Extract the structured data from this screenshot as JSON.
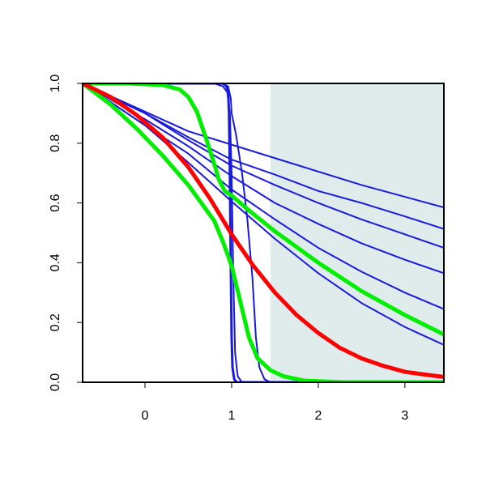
{
  "chart_data": {
    "type": "line",
    "title": "",
    "xlabel": "",
    "ylabel": "",
    "xlim": [
      -0.72,
      3.45
    ],
    "ylim": [
      0,
      1
    ],
    "x_ticks": [
      0,
      1,
      2,
      3
    ],
    "x_tick_labels": [
      "0",
      "1",
      "2",
      "3"
    ],
    "y_ticks": [
      0,
      0.2,
      0.4,
      0.6,
      0.8,
      1
    ],
    "y_tick_labels": [
      "0.0",
      "0.2",
      "0.4",
      "0.6",
      "0.8",
      "1.0"
    ],
    "grid": false,
    "legend": "none",
    "shaded_region": {
      "x_from": 1.45,
      "x_to": 3.45,
      "color": "#e0ecec"
    },
    "series": [
      {
        "color": "#1a1adb",
        "width": 2,
        "points": [
          [
            -0.72,
            1.0
          ],
          [
            0.5,
            0.84
          ],
          [
            1.5,
            0.75
          ],
          [
            2.5,
            0.66
          ],
          [
            3.45,
            0.585
          ]
        ]
      },
      {
        "color": "#1a1adb",
        "width": 2,
        "points": [
          [
            -0.72,
            1.0
          ],
          [
            0.0,
            0.9
          ],
          [
            0.5,
            0.82
          ],
          [
            1.0,
            0.745
          ],
          [
            1.5,
            0.695
          ],
          [
            2.0,
            0.64
          ],
          [
            2.5,
            0.6
          ],
          [
            3.0,
            0.555
          ],
          [
            3.45,
            0.513
          ]
        ]
      },
      {
        "color": "#1a1adb",
        "width": 2,
        "points": [
          [
            -0.72,
            1.0
          ],
          [
            0.0,
            0.9
          ],
          [
            0.5,
            0.81
          ],
          [
            1.0,
            0.725
          ],
          [
            1.5,
            0.66
          ],
          [
            2.0,
            0.6
          ],
          [
            2.5,
            0.545
          ],
          [
            3.0,
            0.495
          ],
          [
            3.45,
            0.45
          ]
        ]
      },
      {
        "color": "#1a1adb",
        "width": 2,
        "points": [
          [
            -0.72,
            1.0
          ],
          [
            0.0,
            0.88
          ],
          [
            0.5,
            0.79
          ],
          [
            1.0,
            0.69
          ],
          [
            1.5,
            0.6
          ],
          [
            2.0,
            0.53
          ],
          [
            2.5,
            0.465
          ],
          [
            3.0,
            0.41
          ],
          [
            3.45,
            0.365
          ]
        ]
      },
      {
        "color": "#1a1adb",
        "width": 2,
        "points": [
          [
            -0.72,
            1.0
          ],
          [
            0.0,
            0.86
          ],
          [
            0.5,
            0.765
          ],
          [
            1.0,
            0.645
          ],
          [
            1.5,
            0.545
          ],
          [
            2.0,
            0.45
          ],
          [
            2.5,
            0.37
          ],
          [
            3.0,
            0.3
          ],
          [
            3.45,
            0.245
          ]
        ]
      },
      {
        "color": "#1a1adb",
        "width": 2,
        "points": [
          [
            -0.72,
            1.0
          ],
          [
            0.0,
            0.86
          ],
          [
            0.5,
            0.735
          ],
          [
            1.0,
            0.605
          ],
          [
            1.5,
            0.48
          ],
          [
            2.0,
            0.365
          ],
          [
            2.5,
            0.265
          ],
          [
            3.0,
            0.185
          ],
          [
            3.45,
            0.125
          ]
        ]
      },
      {
        "color": "#1a1adb",
        "width": 2,
        "points": [
          [
            -0.72,
            1.0
          ],
          [
            0.8,
            1.0
          ],
          [
            0.9,
            0.99
          ],
          [
            0.95,
            0.97
          ],
          [
            0.98,
            0.9
          ],
          [
            1.0,
            0.7
          ],
          [
            1.02,
            0.35
          ],
          [
            1.04,
            0.1
          ],
          [
            1.07,
            0.02
          ],
          [
            1.12,
            0.0
          ],
          [
            3.45,
            0.0
          ]
        ]
      },
      {
        "color": "#1a1adb",
        "width": 2,
        "points": [
          [
            -0.72,
            1.0
          ],
          [
            0.9,
            1.0
          ],
          [
            0.96,
            0.99
          ],
          [
            0.99,
            0.95
          ],
          [
            1.0,
            0.9
          ],
          [
            1.05,
            0.83
          ],
          [
            1.12,
            0.7
          ],
          [
            1.18,
            0.55
          ],
          [
            1.24,
            0.35
          ],
          [
            1.28,
            0.15
          ],
          [
            1.32,
            0.05
          ],
          [
            1.38,
            0.01
          ],
          [
            1.45,
            0.0
          ],
          [
            3.45,
            0.0
          ]
        ]
      },
      {
        "color": "#1a1adb",
        "width": 3,
        "points": [
          [
            -0.72,
            1.0
          ],
          [
            0.9,
            1.0
          ],
          [
            0.94,
            0.99
          ],
          [
            0.96,
            0.97
          ],
          [
            0.97,
            0.9
          ],
          [
            0.98,
            0.7
          ],
          [
            0.99,
            0.4
          ],
          [
            1.0,
            0.15
          ],
          [
            1.01,
            0.05
          ],
          [
            1.03,
            0.01
          ],
          [
            1.06,
            0.0
          ],
          [
            3.45,
            0.0
          ]
        ]
      },
      {
        "color": "#00ee00",
        "width": 5,
        "points": [
          [
            -0.72,
            1.0
          ],
          [
            -0.4,
            0.93
          ],
          [
            -0.1,
            0.85
          ],
          [
            0.2,
            0.76
          ],
          [
            0.5,
            0.66
          ],
          [
            0.8,
            0.54
          ],
          [
            0.9,
            0.47
          ],
          [
            1.0,
            0.39
          ],
          [
            1.1,
            0.27
          ],
          [
            1.2,
            0.15
          ],
          [
            1.3,
            0.08
          ],
          [
            1.45,
            0.04
          ],
          [
            1.6,
            0.02
          ],
          [
            1.85,
            0.005
          ],
          [
            2.3,
            0.0
          ],
          [
            3.45,
            0.0
          ]
        ]
      },
      {
        "color": "#00ee00",
        "width": 5,
        "points": [
          [
            -0.72,
            1.0
          ],
          [
            -0.2,
            1.0
          ],
          [
            0.2,
            0.995
          ],
          [
            0.4,
            0.98
          ],
          [
            0.5,
            0.955
          ],
          [
            0.6,
            0.905
          ],
          [
            0.7,
            0.82
          ],
          [
            0.8,
            0.73
          ],
          [
            0.85,
            0.68
          ],
          [
            0.92,
            0.64
          ],
          [
            1.0,
            0.625
          ],
          [
            1.2,
            0.575
          ],
          [
            1.5,
            0.505
          ],
          [
            2.0,
            0.4
          ],
          [
            2.5,
            0.305
          ],
          [
            3.0,
            0.225
          ],
          [
            3.45,
            0.16
          ]
        ]
      },
      {
        "color": "#ff0000",
        "width": 5,
        "points": [
          [
            -0.72,
            1.0
          ],
          [
            -0.4,
            0.955
          ],
          [
            -0.1,
            0.895
          ],
          [
            0.2,
            0.82
          ],
          [
            0.5,
            0.72
          ],
          [
            0.75,
            0.615
          ],
          [
            1.0,
            0.495
          ],
          [
            1.25,
            0.39
          ],
          [
            1.5,
            0.3
          ],
          [
            1.75,
            0.225
          ],
          [
            2.0,
            0.165
          ],
          [
            2.25,
            0.115
          ],
          [
            2.5,
            0.08
          ],
          [
            2.75,
            0.055
          ],
          [
            3.0,
            0.035
          ],
          [
            3.25,
            0.025
          ],
          [
            3.45,
            0.018
          ]
        ]
      }
    ]
  }
}
